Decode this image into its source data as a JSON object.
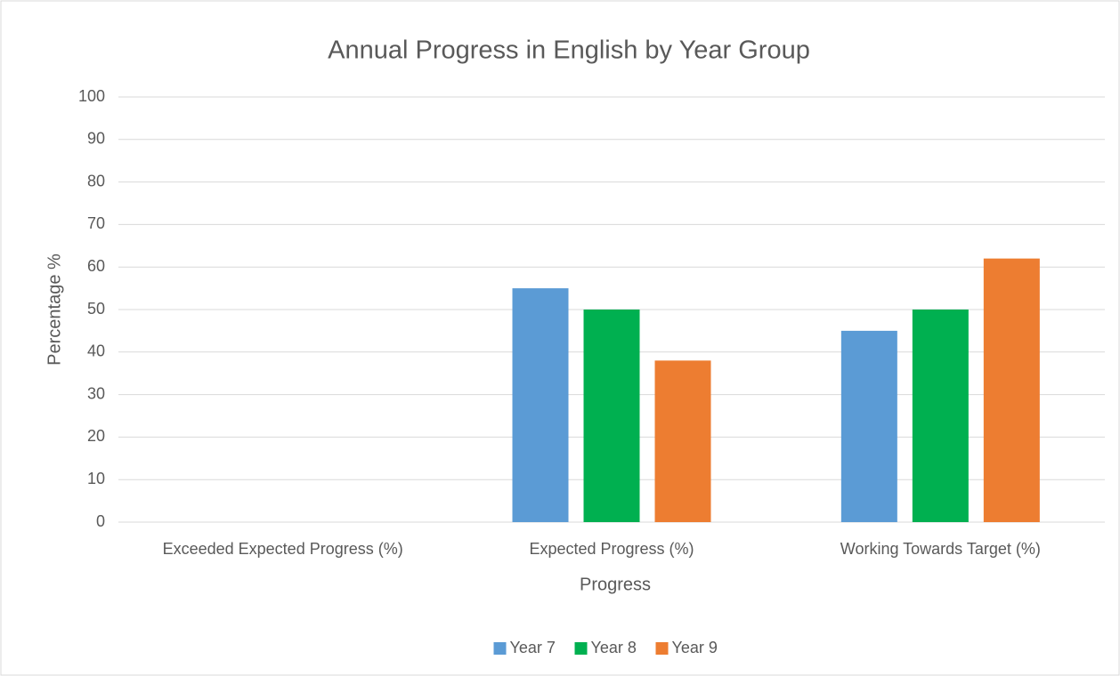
{
  "chart_data": {
    "type": "bar",
    "title": "Annual Progress in English by Year Group",
    "x_label": "Progress",
    "y_label": "Percentage %",
    "categories": [
      "Exceeded Expected Progress (%)",
      "Expected Progress (%)",
      "Working Towards Target (%)"
    ],
    "series": [
      {
        "name": "Year 7",
        "color": "#5b9bd5",
        "values": [
          0,
          55,
          45
        ]
      },
      {
        "name": "Year 8",
        "color": "#00b050",
        "values": [
          0,
          50,
          50
        ]
      },
      {
        "name": "Year 9",
        "color": "#ed7d31",
        "values": [
          0,
          38,
          62
        ]
      }
    ],
    "ylim": [
      0,
      100
    ],
    "yticks": [
      0,
      10,
      20,
      30,
      40,
      50,
      60,
      70,
      80,
      90,
      100
    ],
    "grid": true,
    "legend": "bottom"
  }
}
